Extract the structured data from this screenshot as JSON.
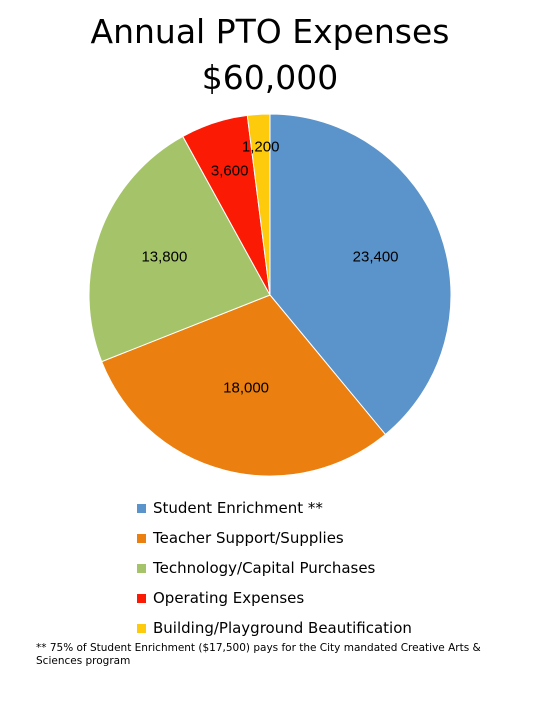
{
  "header": {
    "title": "Annual PTO Expenses",
    "total": "$60,000"
  },
  "chart_data": {
    "type": "pie",
    "title": "Annual PTO Expenses",
    "subtitle": "$60,000",
    "categories": [
      "Student Enrichment **",
      "Teacher Support/Supplies",
      "Technology/Capital Purchases",
      "Operating Expenses",
      "Building/Playground Beautification"
    ],
    "values": [
      23400,
      18000,
      13800,
      3600,
      1200
    ],
    "value_labels": [
      "23,400",
      "18,000",
      "13,800",
      "3,600",
      "1,200"
    ],
    "colors": [
      "#5B93CB",
      "#EB7F0F",
      "#A5C46A",
      "#FB1B05",
      "#FECB0C"
    ],
    "start_angle_deg": 0,
    "direction": "clockwise",
    "legend_position": "bottom"
  },
  "footnote": "** 75% of Student Enrichment ($17,500) pays for the City mandated Creative Arts & Sciences program"
}
